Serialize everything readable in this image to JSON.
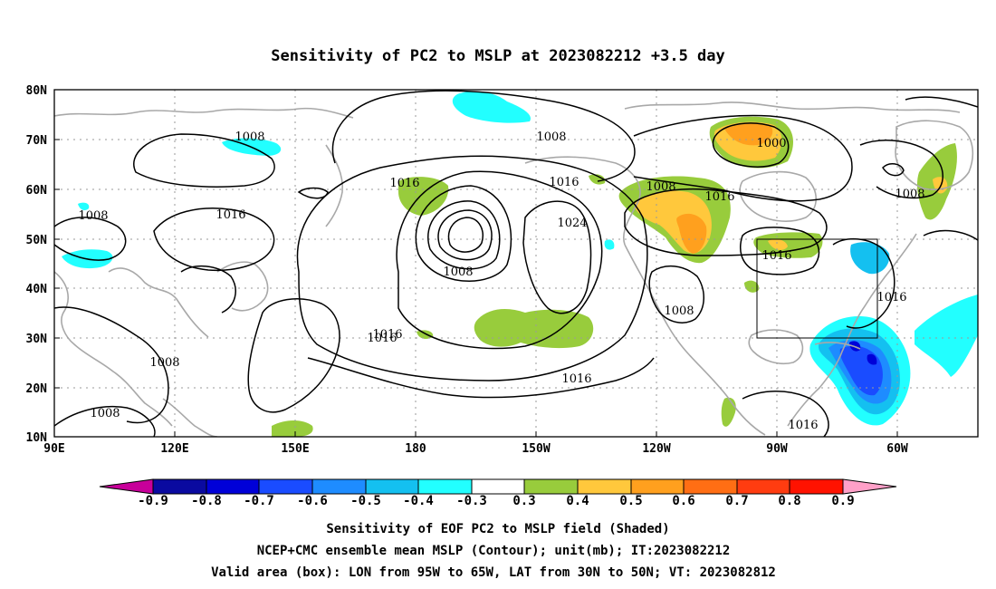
{
  "title": "Sensitivity of PC2 to MSLP at 2023082212 +3.5 day",
  "lat_ticks": [
    "80N",
    "70N",
    "60N",
    "50N",
    "40N",
    "30N",
    "20N",
    "10N"
  ],
  "lon_ticks": [
    "90E",
    "120E",
    "150E",
    "180",
    "150W",
    "120W",
    "90W",
    "60W"
  ],
  "contour_labels": [
    "1008",
    "1008",
    "1016",
    "1008",
    "1016",
    "1016",
    "1024",
    "1008",
    "1016",
    "1000",
    "1008",
    "1016",
    "1016",
    "1016",
    "1016",
    "1008",
    "1008",
    "1008",
    "1008",
    "1016",
    "1016"
  ],
  "colorbar": {
    "ticks": [
      "-0.9",
      "-0.8",
      "-0.7",
      "-0.6",
      "-0.5",
      "-0.4",
      "-0.3",
      "0.3",
      "0.4",
      "0.5",
      "0.6",
      "0.7",
      "0.8",
      "0.9"
    ],
    "colors": [
      "#0a0aa0",
      "#0000d8",
      "#1a4cff",
      "#1e8cff",
      "#14c0f0",
      "#22ffff",
      "#ffffff",
      "#98cc3c",
      "#ffc83c",
      "#ffa01e",
      "#ff6e14",
      "#ff3c10",
      "#ff1200"
    ],
    "low_end_color": "#c8009a",
    "high_end_color": "#ffa0c8"
  },
  "captions": {
    "line1": "Sensitivity of EOF PC2 to MSLP field (Shaded)",
    "line2": "NCEP+CMC ensemble mean MSLP (Contour); unit(mb); IT:2023082212",
    "line3": "Valid area (box): LON from 95W to 65W, LAT from 30N to 50N; VT: 2023082812"
  },
  "valid_box": {
    "lon_west": "95W",
    "lon_east": "65W",
    "lat_south": "30N",
    "lat_north": "50N"
  },
  "shading_colors": {
    "cyan": "#22ffff",
    "sky": "#14c0f0",
    "blue_mid": "#1e8cff",
    "blue": "#1a4cff",
    "navy": "#0000d8",
    "green": "#98cc3c",
    "yellow": "#ffc83c",
    "orange": "#ffa01e"
  }
}
